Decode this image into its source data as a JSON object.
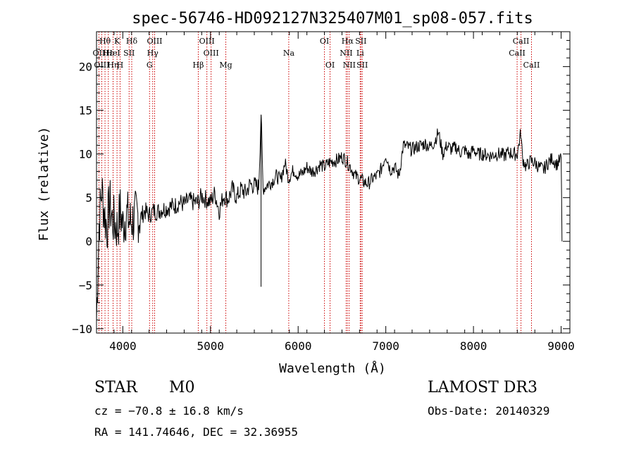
{
  "chart_data": {
    "type": "line",
    "title": "spec-56746-HD092127N325407M01_sp08-057.fits",
    "xlabel": "Wavelength (Å)",
    "ylabel": "Flux (relative)",
    "xlim": [
      3700,
      9100
    ],
    "ylim": [
      -10.5,
      24
    ],
    "xticks": [
      4000,
      5000,
      6000,
      7000,
      8000,
      9000
    ],
    "yticks": [
      -10,
      -5,
      0,
      5,
      10,
      15,
      20
    ],
    "xtick_labels": [
      "4000",
      "5000",
      "6000",
      "7000",
      "8000",
      "9000"
    ],
    "ytick_labels": [
      "−10",
      "−5",
      "0",
      "5",
      "10",
      "15",
      "20"
    ],
    "grid": false,
    "line_color": "#000000",
    "marker_color": "#cc0000",
    "series": [
      {
        "x": [
          3700,
          3730,
          3760,
          3790,
          3820,
          3850,
          3880,
          3910,
          3940,
          3970,
          4000,
          4040,
          4080,
          4120,
          4160,
          4200,
          4250,
          4300,
          4350,
          4400,
          4450,
          4500,
          4550,
          4600,
          4650,
          4700,
          4750,
          4800,
          4850,
          4900,
          4950,
          5000,
          5050,
          5100,
          5150,
          5200,
          5250,
          5300,
          5350,
          5400,
          5450,
          5500,
          5550,
          5577,
          5600,
          5650,
          5700,
          5750,
          5800,
          5850,
          5890,
          5950,
          6000,
          6050,
          6100,
          6150,
          6200,
          6250,
          6300,
          6350,
          6400,
          6450,
          6500,
          6550,
          6600,
          6650,
          6700,
          6750,
          6800,
          6850,
          6900,
          6950,
          7000,
          7050,
          7100,
          7150,
          7200,
          7250,
          7300,
          7350,
          7400,
          7450,
          7500,
          7550,
          7600,
          7650,
          7700,
          7750,
          7800,
          7850,
          7900,
          7950,
          8000,
          8050,
          8100,
          8150,
          8200,
          8250,
          8300,
          8350,
          8400,
          8450,
          8500,
          8540,
          8560,
          8600,
          8650,
          8700,
          8750,
          8800,
          8850,
          8900,
          8950,
          9000,
          9010
        ],
        "y": [
          -9,
          2,
          6,
          3.2,
          1.5,
          4.5,
          2.5,
          2,
          1.5,
          3.5,
          1.8,
          3.2,
          2.2,
          2.5,
          3,
          2.7,
          3.5,
          3,
          3.5,
          3.4,
          3.7,
          3.8,
          4,
          4.1,
          4.5,
          4.2,
          4.7,
          4.5,
          4.4,
          5.2,
          4.8,
          4.5,
          5.5,
          3.5,
          5.3,
          4.8,
          6,
          5,
          6,
          5.5,
          6.5,
          6.4,
          6.2,
          14.5,
          6,
          6.5,
          6.8,
          7.5,
          7,
          9,
          7.2,
          8.2,
          7.5,
          7.8,
          8.5,
          8,
          8.2,
          8.8,
          8.5,
          9,
          9.2,
          9.3,
          9.7,
          9.2,
          8.5,
          7.5,
          7.2,
          6.8,
          6.6,
          7.2,
          7.5,
          8.3,
          10,
          8.2,
          8.5,
          7.5,
          11,
          10.8,
          10.5,
          10.8,
          11,
          11.2,
          10.8,
          11.3,
          12.5,
          10,
          11,
          10.5,
          10.8,
          10.2,
          10.5,
          9.8,
          10.5,
          10,
          10,
          9.9,
          9.8,
          10,
          10,
          9.8,
          10.2,
          10,
          10,
          12.5,
          9.5,
          8.5,
          9.2,
          9,
          8.5,
          8.2,
          9,
          9.5,
          8.8,
          9.5,
          0
        ]
      }
    ],
    "lines": [
      {
        "label": "Hθ",
        "x": 3797,
        "row": 0
      },
      {
        "label": "OII",
        "x": 3727,
        "row": 1
      },
      {
        "label": "OIII",
        "x": 3760,
        "row": 2
      },
      {
        "label": "Hε",
        "x": 3835,
        "row": 1
      },
      {
        "label": "Hη",
        "x": 3889,
        "row": 2
      },
      {
        "label": "K",
        "x": 3934,
        "row": 0
      },
      {
        "label": "HeI",
        "x": 3889,
        "row": 1
      },
      {
        "label": "H",
        "x": 3969,
        "row": 2
      },
      {
        "label": "Hδ",
        "x": 4102,
        "row": 0
      },
      {
        "label": "SII",
        "x": 4072,
        "row": 1
      },
      {
        "label": "OIII",
        "x": 4363,
        "row": 0
      },
      {
        "label": "Hγ",
        "x": 4341,
        "row": 1
      },
      {
        "label": "G",
        "x": 4305,
        "row": 2
      },
      {
        "label": "OIII",
        "x": 4959,
        "row": 0
      },
      {
        "label": "OIII",
        "x": 5007,
        "row": 1
      },
      {
        "label": "Hβ",
        "x": 4861,
        "row": 2
      },
      {
        "label": "Mg",
        "x": 5175,
        "row": 2
      },
      {
        "label": "Na",
        "x": 5893,
        "row": 1
      },
      {
        "label": "OI",
        "x": 6300,
        "row": 0
      },
      {
        "label": "OI",
        "x": 6364,
        "row": 2
      },
      {
        "label": "Hα",
        "x": 6563,
        "row": 0
      },
      {
        "label": "NII",
        "x": 6548,
        "row": 1
      },
      {
        "label": "NII",
        "x": 6583,
        "row": 2
      },
      {
        "label": "SII",
        "x": 6716,
        "row": 0
      },
      {
        "label": "Li",
        "x": 6708,
        "row": 1
      },
      {
        "label": "SII",
        "x": 6731,
        "row": 2
      },
      {
        "label": "CaII",
        "x": 8542,
        "row": 0
      },
      {
        "label": "CaII",
        "x": 8498,
        "row": 1
      },
      {
        "label": "CaII",
        "x": 8662,
        "row": 2
      }
    ]
  },
  "info": {
    "class_label": "STAR",
    "subclass": "M0",
    "survey": "LAMOST DR3",
    "cz": "cz = −70.8 ± 16.8 km/s",
    "obs_date": "Obs-Date: 20140329",
    "coords": "RA = 141.74646, DEC =  32.36955"
  }
}
